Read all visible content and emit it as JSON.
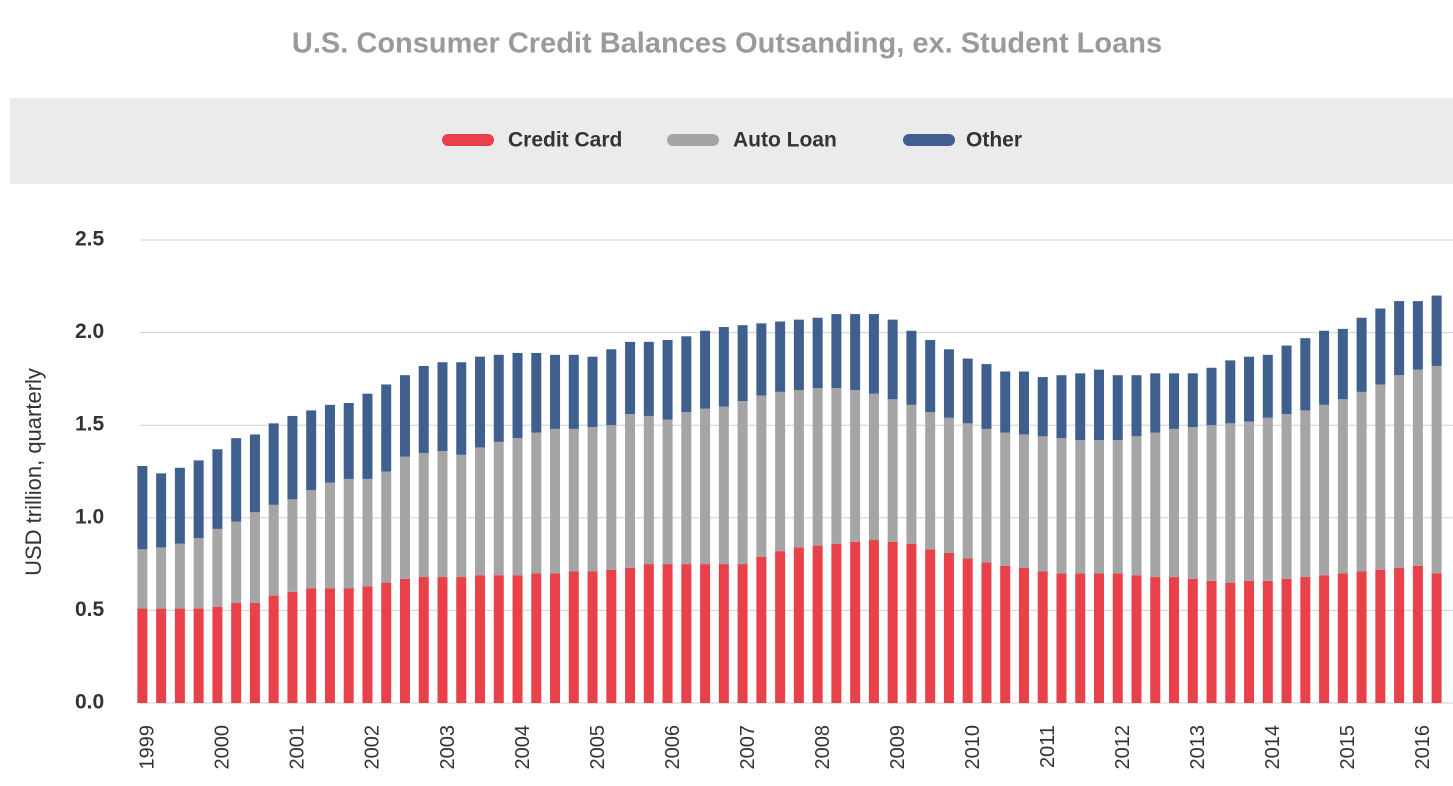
{
  "chart_data": {
    "type": "stacked_bar",
    "title": "U.S. Consumer Credit Balances Outsanding, ex. Student Loans",
    "y_label": "USD trillion, quarterly",
    "categories": [
      "1999",
      null,
      null,
      null,
      "2000",
      null,
      null,
      null,
      "2001",
      null,
      null,
      null,
      "2002",
      null,
      null,
      null,
      "2003",
      null,
      null,
      null,
      "2004",
      null,
      null,
      null,
      "2005",
      null,
      null,
      null,
      "2006",
      null,
      null,
      null,
      "2007",
      null,
      null,
      null,
      "2008",
      null,
      null,
      null,
      "2009",
      null,
      null,
      null,
      "2010",
      null,
      null,
      null,
      "2011",
      null,
      null,
      null,
      "2012",
      null,
      null,
      null,
      "2013",
      null,
      null,
      null,
      "2014",
      null,
      null,
      null,
      "2015",
      null,
      null,
      null,
      "2016",
      null
    ],
    "series": [
      {
        "name": "Credit Card",
        "color": "#e8414a",
        "values": [
          0.51,
          0.51,
          0.51,
          0.51,
          0.52,
          0.54,
          0.54,
          0.58,
          0.6,
          0.62,
          0.62,
          0.62,
          0.63,
          0.65,
          0.67,
          0.68,
          0.68,
          0.68,
          0.69,
          0.69,
          0.69,
          0.7,
          0.7,
          0.71,
          0.71,
          0.72,
          0.73,
          0.75,
          0.75,
          0.75,
          0.75,
          0.75,
          0.75,
          0.79,
          0.82,
          0.84,
          0.85,
          0.86,
          0.87,
          0.88,
          0.87,
          0.86,
          0.83,
          0.81,
          0.78,
          0.76,
          0.74,
          0.73,
          0.71,
          0.7,
          0.7,
          0.7,
          0.7,
          0.69,
          0.68,
          0.68,
          0.67,
          0.66,
          0.65,
          0.66,
          0.66,
          0.67,
          0.68,
          0.69,
          0.7,
          0.71,
          0.72,
          0.73,
          0.74,
          0.7
        ]
      },
      {
        "name": "Auto Loan",
        "color": "#a5a5a5",
        "values": [
          0.32,
          0.33,
          0.35,
          0.38,
          0.42,
          0.44,
          0.49,
          0.49,
          0.5,
          0.53,
          0.57,
          0.59,
          0.58,
          0.6,
          0.66,
          0.67,
          0.68,
          0.66,
          0.69,
          0.72,
          0.74,
          0.76,
          0.78,
          0.77,
          0.78,
          0.78,
          0.83,
          0.8,
          0.78,
          0.82,
          0.84,
          0.85,
          0.88,
          0.87,
          0.86,
          0.85,
          0.85,
          0.84,
          0.82,
          0.79,
          0.77,
          0.75,
          0.74,
          0.73,
          0.73,
          0.72,
          0.72,
          0.72,
          0.73,
          0.73,
          0.72,
          0.72,
          0.72,
          0.75,
          0.78,
          0.8,
          0.82,
          0.84,
          0.86,
          0.86,
          0.88,
          0.89,
          0.9,
          0.92,
          0.94,
          0.97,
          1.0,
          1.04,
          1.06,
          1.12
        ]
      },
      {
        "name": "Other",
        "color": "#3f5f8f",
        "values": [
          0.45,
          0.4,
          0.41,
          0.42,
          0.43,
          0.45,
          0.42,
          0.44,
          0.45,
          0.43,
          0.42,
          0.41,
          0.46,
          0.47,
          0.44,
          0.47,
          0.48,
          0.5,
          0.49,
          0.47,
          0.46,
          0.43,
          0.4,
          0.4,
          0.38,
          0.41,
          0.39,
          0.4,
          0.43,
          0.41,
          0.42,
          0.43,
          0.41,
          0.39,
          0.38,
          0.38,
          0.38,
          0.4,
          0.41,
          0.43,
          0.43,
          0.4,
          0.39,
          0.37,
          0.35,
          0.35,
          0.33,
          0.34,
          0.32,
          0.34,
          0.36,
          0.38,
          0.35,
          0.33,
          0.32,
          0.3,
          0.29,
          0.31,
          0.34,
          0.35,
          0.34,
          0.37,
          0.39,
          0.4,
          0.38,
          0.4,
          0.41,
          0.4,
          0.37,
          0.38
        ]
      }
    ],
    "ylim": [
      0,
      2.5
    ],
    "yticks": [
      {
        "value": 0,
        "label": "0.0"
      },
      0.5,
      {
        "value": 1,
        "label": "1.0"
      },
      1.5,
      {
        "value": 2,
        "label": "2.0"
      },
      2.5
    ],
    "grid": true,
    "legend": "top"
  }
}
